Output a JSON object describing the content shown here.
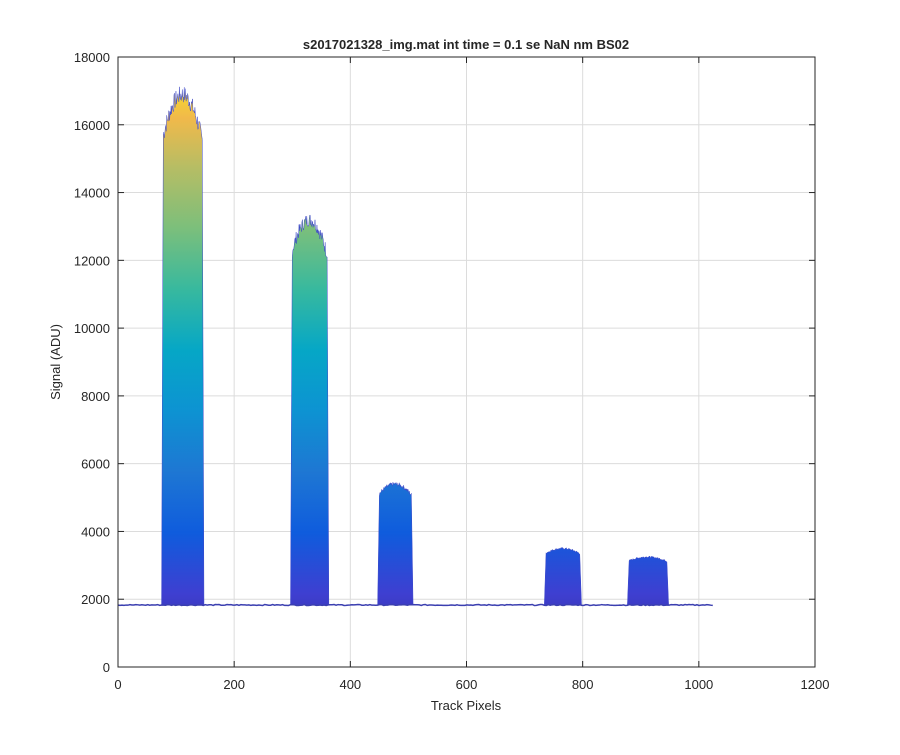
{
  "chart_data": {
    "type": "area",
    "title": "s2017021328_img.mat int time = 0.1 se  NaN nm BS02",
    "xlabel": "Track Pixels",
    "ylabel": "Signal (ADU)",
    "xlim": [
      0,
      1200
    ],
    "ylim": [
      0,
      18000
    ],
    "xticks": [
      0,
      200,
      400,
      600,
      800,
      1000,
      1200
    ],
    "yticks": [
      0,
      2000,
      4000,
      6000,
      8000,
      10000,
      12000,
      14000,
      16000,
      18000
    ],
    "xtick_labels": [
      "0",
      "200",
      "400",
      "600",
      "800",
      "1000",
      "1200"
    ],
    "ytick_labels": [
      "0",
      "2000",
      "4000",
      "6000",
      "8000",
      "10000",
      "12000",
      "14000",
      "16000",
      "18000"
    ],
    "grid": true,
    "colormap": "parula",
    "baseline": 1830,
    "x_extent": [
      0,
      1024
    ],
    "peaks": [
      {
        "x_start": 78,
        "x_end": 145,
        "top": 16900
      },
      {
        "x_start": 300,
        "x_end": 360,
        "top": 13200
      },
      {
        "x_start": 450,
        "x_end": 505,
        "top": 5400
      },
      {
        "x_start": 737,
        "x_end": 795,
        "top": 3500
      },
      {
        "x_start": 880,
        "x_end": 945,
        "top": 3250
      }
    ]
  }
}
